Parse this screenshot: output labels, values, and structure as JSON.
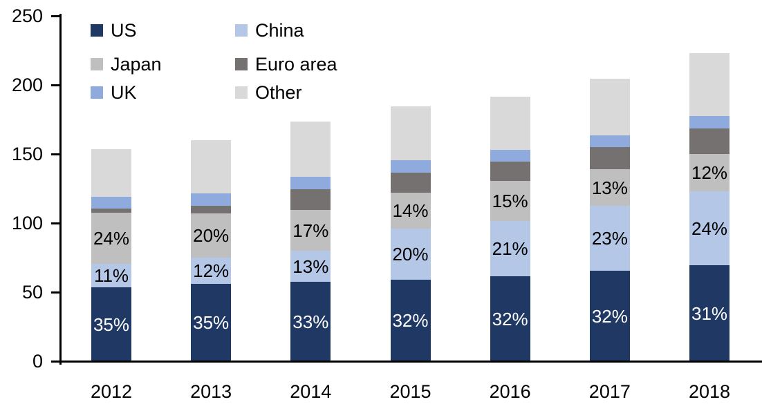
{
  "chart_data": {
    "type": "bar",
    "stacked": true,
    "title": "",
    "xlabel": "",
    "ylabel": "",
    "categories": [
      "2012",
      "2013",
      "2014",
      "2015",
      "2016",
      "2017",
      "2018"
    ],
    "series": [
      {
        "name": "US",
        "color": "#1F3864",
        "values": [
          53.5,
          56,
          57.5,
          59,
          61.5,
          65.5,
          69.5
        ],
        "labels": [
          "35%",
          "35%",
          "33%",
          "32%",
          "32%",
          "32%",
          "31%"
        ],
        "label_color": "#FFFFFF"
      },
      {
        "name": "China",
        "color": "#B4C7E7",
        "values": [
          17,
          19,
          22.5,
          37,
          40,
          47,
          53.5
        ],
        "labels": [
          "11%",
          "12%",
          "13%",
          "20%",
          "21%",
          "23%",
          "24%"
        ],
        "label_color": "#000000"
      },
      {
        "name": "Japan",
        "color": "#BFBFBF",
        "values": [
          37,
          32,
          29.5,
          26,
          29,
          26.5,
          27
        ],
        "labels": [
          "24%",
          "20%",
          "17%",
          "14%",
          "15%",
          "13%",
          "12%"
        ],
        "label_color": "#000000"
      },
      {
        "name": "Euro area",
        "color": "#767171",
        "values": [
          3,
          5.5,
          15,
          14.5,
          14,
          16,
          18.5
        ],
        "labels": null,
        "label_color": null
      },
      {
        "name": "UK",
        "color": "#8FAADC",
        "values": [
          8.5,
          9,
          9,
          9,
          8.5,
          8.5,
          9
        ],
        "labels": null,
        "label_color": null
      },
      {
        "name": "Other",
        "color": "#D9D9D9",
        "values": [
          34.5,
          38.5,
          40,
          39,
          38.5,
          41,
          45.5
        ],
        "labels": null,
        "label_color": null
      }
    ],
    "totals": [
      153.5,
      160,
      173.5,
      184.5,
      191.5,
      204.5,
      223
    ],
    "ylim": [
      0,
      250
    ],
    "yticks": [
      0,
      50,
      100,
      150,
      200,
      250
    ],
    "grid": false,
    "legend_position": "top-left",
    "legend_columns": 2,
    "legend_order": [
      "US",
      "China",
      "Japan",
      "Euro area",
      "UK",
      "Other"
    ],
    "axis_color": "#000000",
    "text_color": "#000000"
  }
}
